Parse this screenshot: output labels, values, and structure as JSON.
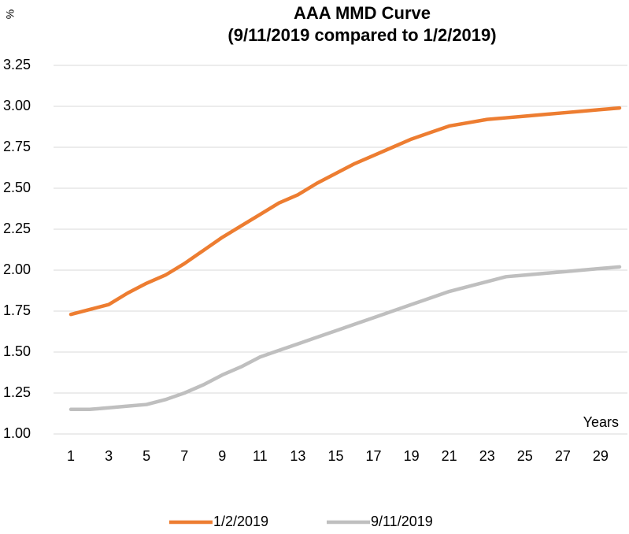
{
  "chart_data": {
    "type": "line",
    "title": [
      "AAA MMD Curve",
      "(9/11/2019 compared to 1/2/2019)"
    ],
    "y_label": "%",
    "x_label": "Years",
    "categories": [
      "1",
      null,
      "3",
      null,
      "5",
      null,
      "7",
      null,
      "9",
      null,
      "11",
      null,
      "13",
      null,
      "15",
      null,
      "17",
      null,
      "19",
      null,
      "21",
      null,
      "23",
      null,
      "25",
      null,
      "27",
      null,
      "29",
      null
    ],
    "series": [
      {
        "name": "1/2/2019",
        "color": "#ed7d31",
        "values": [
          1.73,
          1.76,
          1.79,
          1.86,
          1.92,
          1.97,
          2.04,
          2.12,
          2.2,
          2.27,
          2.34,
          2.41,
          2.46,
          2.53,
          2.59,
          2.65,
          2.7,
          2.75,
          2.8,
          2.84,
          2.88,
          2.9,
          2.92,
          2.93,
          2.94,
          2.95,
          2.96,
          2.97,
          2.98,
          2.99
        ]
      },
      {
        "name": "9/11/2019",
        "color": "#bfbfbf",
        "values": [
          1.15,
          1.15,
          1.16,
          1.17,
          1.18,
          1.21,
          1.25,
          1.3,
          1.36,
          1.41,
          1.47,
          1.51,
          1.55,
          1.59,
          1.63,
          1.67,
          1.71,
          1.75,
          1.79,
          1.83,
          1.87,
          1.9,
          1.93,
          1.96,
          1.97,
          1.98,
          1.99,
          2.0,
          2.01,
          2.02
        ]
      }
    ],
    "ylim": [
      1,
      3.25
    ],
    "yticks": [
      {
        "value": 1,
        "label": "1.00"
      },
      {
        "value": 1.25,
        "label": "1.25"
      },
      {
        "value": 1.5,
        "label": "1.50"
      },
      {
        "value": 1.75,
        "label": "1.75"
      },
      {
        "value": 2,
        "label": "2.00"
      },
      {
        "value": 2.25,
        "label": "2.25"
      },
      {
        "value": 2.5,
        "label": "2.50"
      },
      {
        "value": 2.75,
        "label": "2.75"
      },
      {
        "value": 3,
        "label": "3.00"
      },
      {
        "value": 3.25,
        "label": "3.25"
      }
    ],
    "grid": true,
    "legend": "bottom"
  }
}
